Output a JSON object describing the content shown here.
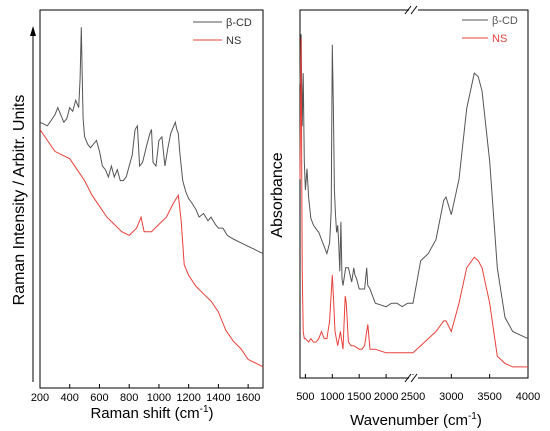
{
  "colors": {
    "series_a": "#555555",
    "series_b": "#e8403a",
    "frame": "#000000"
  },
  "chart_data": [
    {
      "type": "line",
      "ylabel": "Raman Intensity / Arbitr. Units",
      "xlabel_main": "Raman shift (cm",
      "xlabel_sup": "-1",
      "xlabel_end": ")",
      "xlim": [
        200,
        1700
      ],
      "ylim": [
        0,
        1
      ],
      "yticks": false,
      "x_ticks": [
        "200",
        "400",
        "600",
        "800",
        "1000",
        "1200",
        "1400",
        "1600"
      ],
      "legend_position": "top-right",
      "legend": [
        "β-CD",
        "NS"
      ],
      "series": [
        {
          "name": "β-CD",
          "x": [
            200,
            250,
            300,
            320,
            340,
            360,
            380,
            400,
            420,
            440,
            460,
            470,
            478,
            484,
            490,
            500,
            520,
            540,
            560,
            580,
            600,
            620,
            640,
            660,
            680,
            700,
            720,
            740,
            760,
            780,
            800,
            820,
            840,
            855,
            870,
            890,
            920,
            940,
            950,
            960,
            980,
            1000,
            1020,
            1040,
            1060,
            1080,
            1100,
            1110,
            1120,
            1130,
            1140,
            1150,
            1160,
            1180,
            1200,
            1220,
            1250,
            1270,
            1300,
            1330,
            1350,
            1380,
            1400,
            1430,
            1460,
            1500,
            1550,
            1600,
            1650,
            1700
          ],
          "y": [
            0.72,
            0.71,
            0.74,
            0.76,
            0.74,
            0.72,
            0.73,
            0.76,
            0.75,
            0.78,
            0.76,
            0.84,
            0.98,
            0.85,
            0.73,
            0.68,
            0.66,
            0.65,
            0.66,
            0.67,
            0.64,
            0.6,
            0.59,
            0.57,
            0.6,
            0.57,
            0.59,
            0.56,
            0.56,
            0.57,
            0.6,
            0.63,
            0.7,
            0.71,
            0.6,
            0.61,
            0.66,
            0.69,
            0.7,
            0.61,
            0.6,
            0.67,
            0.68,
            0.6,
            0.65,
            0.69,
            0.71,
            0.72,
            0.7,
            0.69,
            0.64,
            0.6,
            0.56,
            0.53,
            0.51,
            0.5,
            0.48,
            0.46,
            0.47,
            0.45,
            0.46,
            0.44,
            0.43,
            0.43,
            0.41,
            0.4,
            0.39,
            0.38,
            0.37,
            0.36
          ]
        },
        {
          "name": "NS",
          "x": [
            200,
            250,
            300,
            350,
            400,
            450,
            500,
            550,
            600,
            650,
            700,
            750,
            800,
            850,
            880,
            900,
            950,
            1000,
            1050,
            1100,
            1130,
            1150,
            1170,
            1200,
            1250,
            1300,
            1350,
            1400,
            1450,
            1500,
            1550,
            1600,
            1650,
            1700
          ],
          "y": [
            0.7,
            0.67,
            0.64,
            0.63,
            0.62,
            0.59,
            0.56,
            0.52,
            0.49,
            0.46,
            0.44,
            0.42,
            0.41,
            0.43,
            0.46,
            0.42,
            0.42,
            0.44,
            0.46,
            0.5,
            0.52,
            0.45,
            0.33,
            0.3,
            0.27,
            0.25,
            0.23,
            0.2,
            0.15,
            0.12,
            0.1,
            0.07,
            0.06,
            0.05
          ]
        }
      ]
    },
    {
      "type": "line",
      "ylabel": "Absorbance",
      "xlabel_main": "Wavenumber (cm",
      "xlabel_sup": "-1",
      "xlabel_end": ")",
      "yticks": false,
      "axis_break": true,
      "segments": [
        {
          "xlim": [
            400,
            2500
          ],
          "x_ticks": [
            "500",
            "1000",
            "1500",
            "2000",
            "2500"
          ],
          "x_tick_values": [
            500,
            1000,
            1500,
            2000,
            2500
          ]
        },
        {
          "xlim": [
            2500,
            4000
          ],
          "x_ticks": [
            "3000",
            "3500",
            "4000"
          ],
          "x_tick_values": [
            3000,
            3500,
            4000
          ]
        }
      ],
      "ylim": [
        0,
        1
      ],
      "legend_position": "top-right",
      "legend": [
        "β-CD",
        "NS"
      ],
      "series": [
        {
          "name": "β-CD",
          "x": [
            400,
            420,
            440,
            460,
            480,
            500,
            530,
            560,
            600,
            650,
            700,
            750,
            800,
            850,
            900,
            950,
            980,
            1000,
            1020,
            1040,
            1060,
            1080,
            1100,
            1120,
            1140,
            1160,
            1180,
            1200,
            1250,
            1300,
            1330,
            1360,
            1400,
            1420,
            1450,
            1500,
            1550,
            1600,
            1640,
            1660,
            1700,
            1750,
            1800,
            2000,
            2100,
            2200,
            2300,
            2400,
            2500,
            2600,
            2700,
            2800,
            2900,
            2930,
            3000,
            3100,
            3200,
            3300,
            3350,
            3400,
            3500,
            3600,
            3700,
            3800,
            3900,
            4000
          ],
          "y": [
            0.82,
            0.96,
            0.7,
            0.85,
            0.6,
            0.52,
            0.58,
            0.5,
            0.44,
            0.42,
            0.41,
            0.4,
            0.38,
            0.36,
            0.34,
            0.37,
            0.46,
            0.93,
            0.75,
            0.52,
            0.45,
            0.4,
            0.42,
            0.37,
            0.29,
            0.43,
            0.27,
            0.25,
            0.3,
            0.3,
            0.28,
            0.26,
            0.3,
            0.28,
            0.27,
            0.24,
            0.24,
            0.24,
            0.3,
            0.25,
            0.24,
            0.22,
            0.2,
            0.19,
            0.2,
            0.2,
            0.19,
            0.2,
            0.2,
            0.32,
            0.34,
            0.38,
            0.49,
            0.5,
            0.45,
            0.55,
            0.75,
            0.85,
            0.84,
            0.8,
            0.6,
            0.3,
            0.16,
            0.12,
            0.11,
            0.1
          ]
        },
        {
          "name": "NS",
          "x": [
            400,
            420,
            440,
            460,
            480,
            500,
            560,
            600,
            650,
            700,
            750,
            800,
            850,
            900,
            950,
            1000,
            1020,
            1050,
            1100,
            1150,
            1200,
            1240,
            1260,
            1300,
            1350,
            1400,
            1500,
            1550,
            1600,
            1640,
            1660,
            1700,
            1750,
            1800,
            2000,
            2100,
            2200,
            2300,
            2400,
            2500,
            2600,
            2700,
            2800,
            2900,
            2930,
            3000,
            3100,
            3200,
            3300,
            3350,
            3400,
            3500,
            3600,
            3700,
            3800,
            3900,
            4000
          ],
          "y": [
            0.55,
            0.95,
            0.3,
            0.12,
            0.1,
            0.1,
            0.09,
            0.1,
            0.09,
            0.09,
            0.1,
            0.12,
            0.1,
            0.1,
            0.15,
            0.28,
            0.22,
            0.12,
            0.08,
            0.12,
            0.07,
            0.22,
            0.2,
            0.09,
            0.08,
            0.08,
            0.07,
            0.07,
            0.08,
            0.12,
            0.14,
            0.07,
            0.07,
            0.07,
            0.06,
            0.06,
            0.06,
            0.06,
            0.06,
            0.06,
            0.08,
            0.1,
            0.12,
            0.15,
            0.15,
            0.12,
            0.2,
            0.3,
            0.33,
            0.32,
            0.3,
            0.2,
            0.05,
            0.03,
            0.02,
            0.02,
            0.02
          ]
        }
      ]
    }
  ]
}
